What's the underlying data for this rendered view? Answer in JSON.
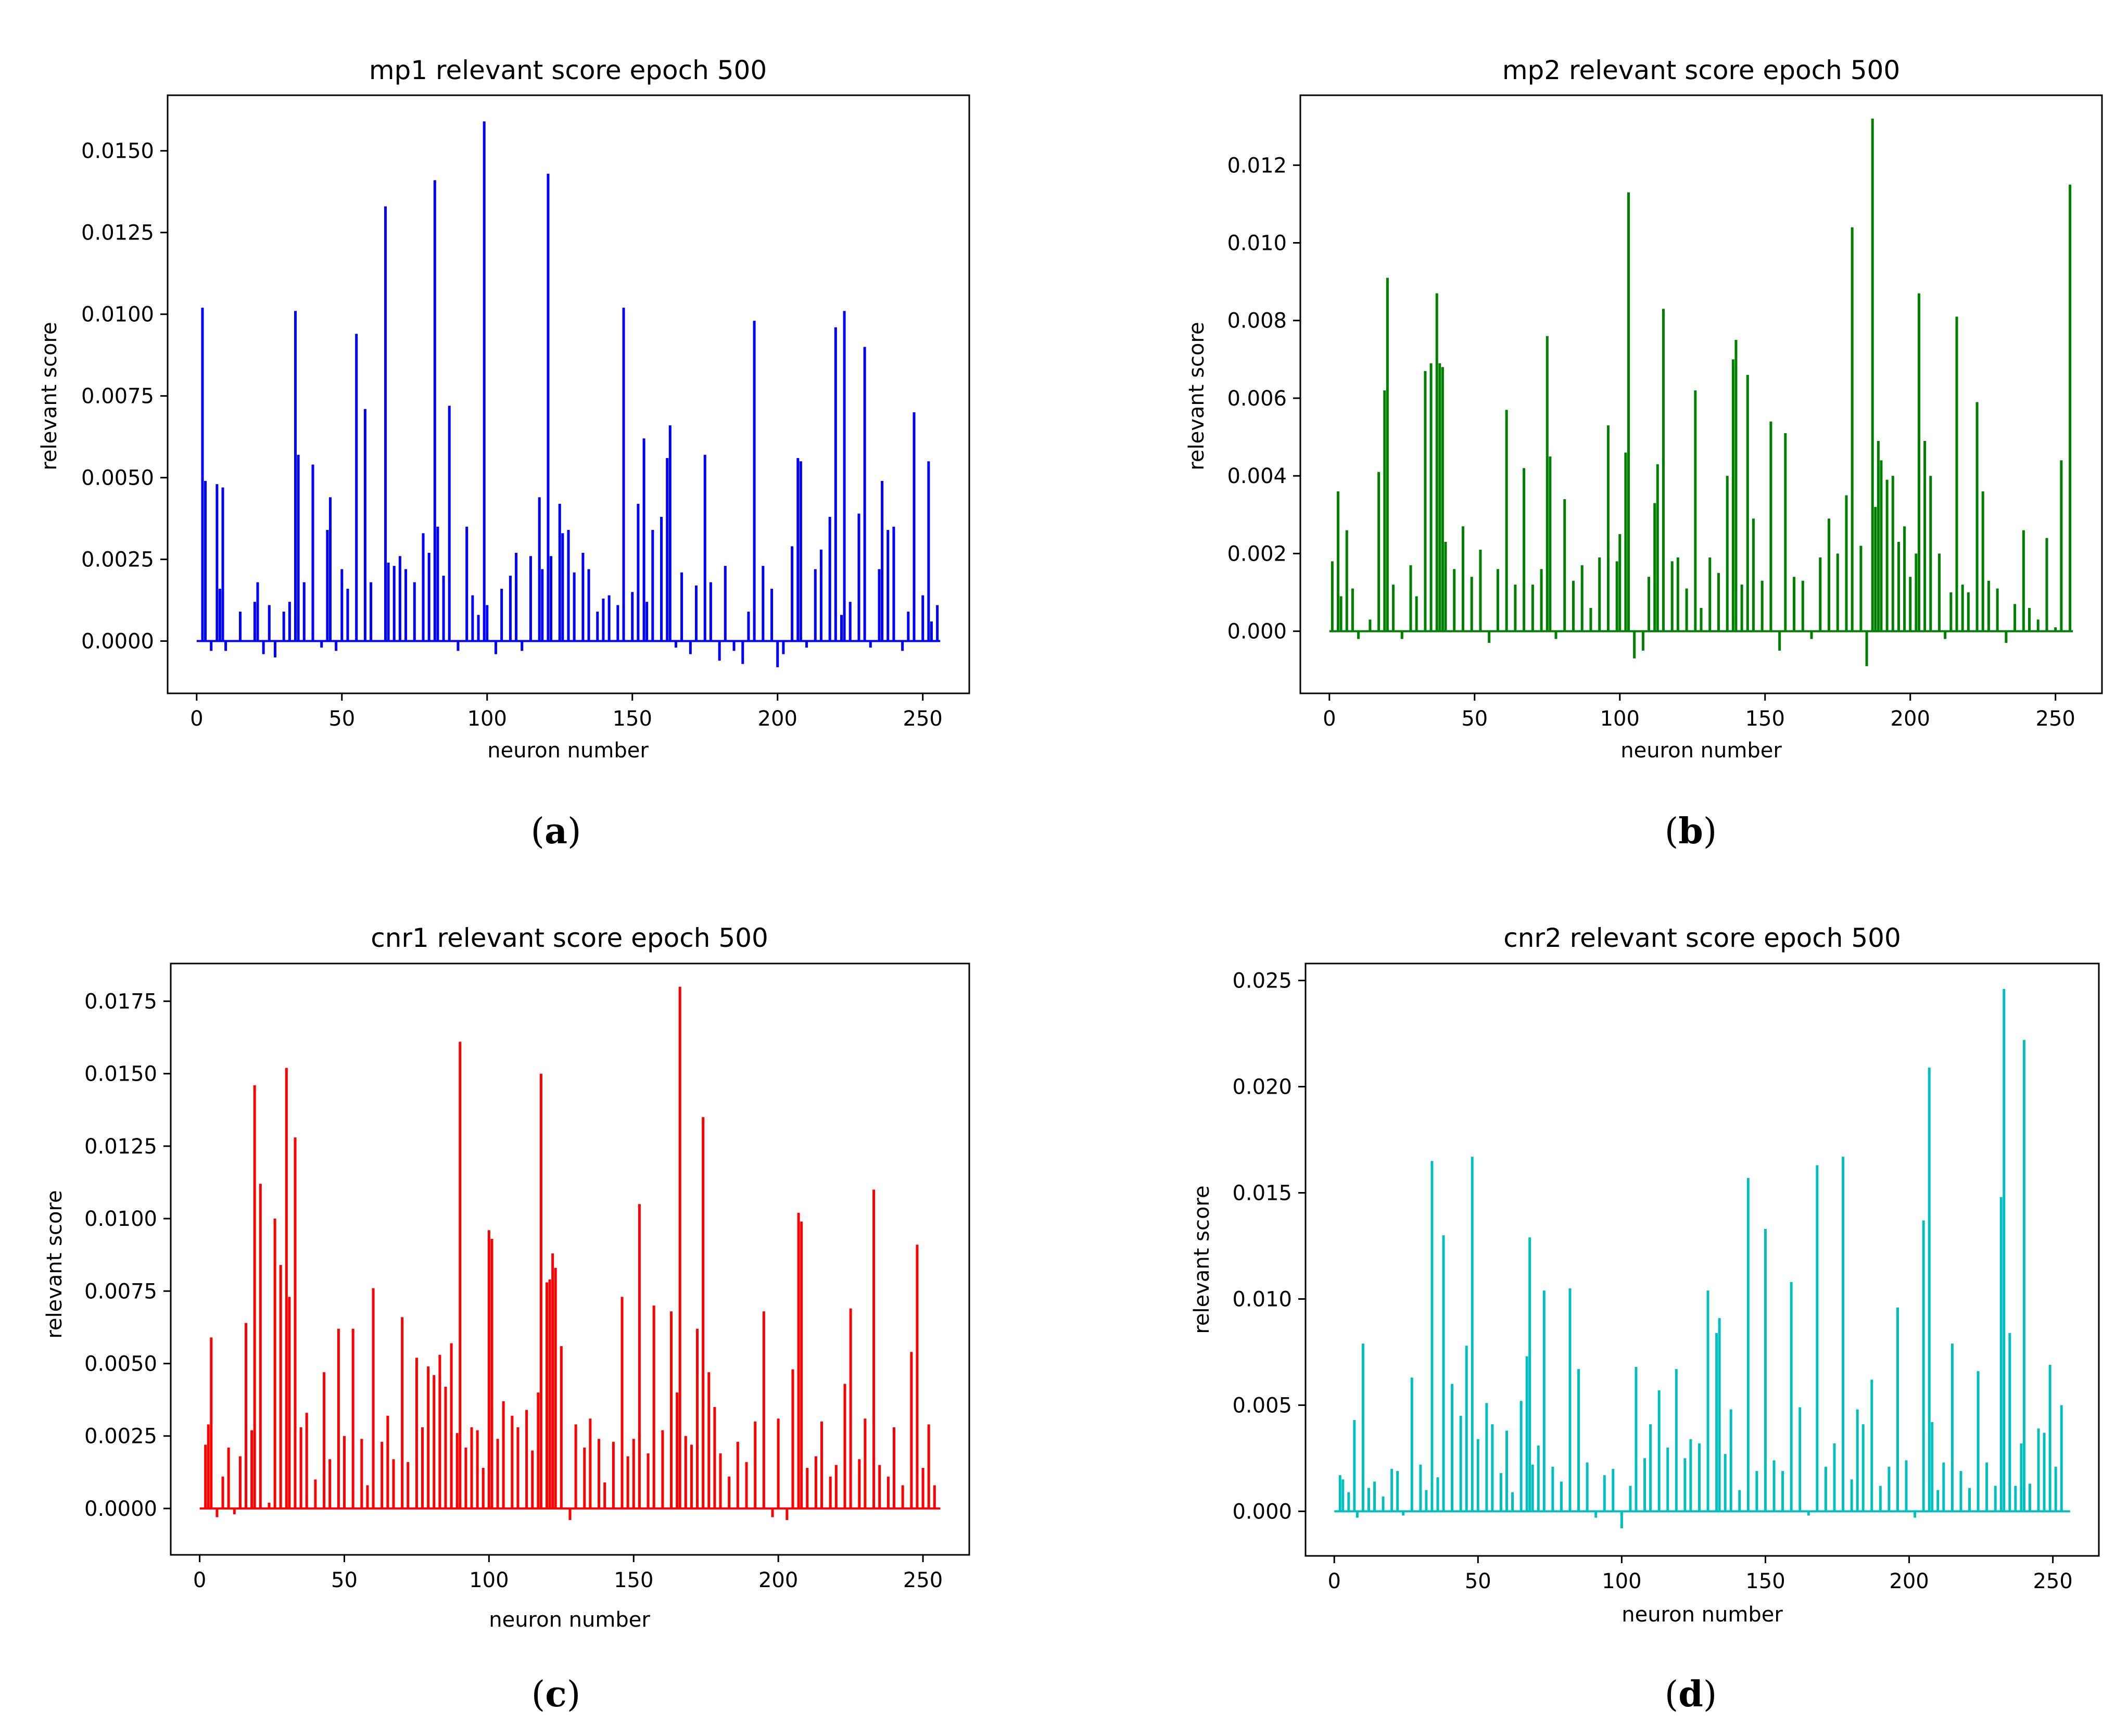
{
  "chart_data": [
    {
      "type": "bar",
      "title": "mp1 relevant score epoch 500",
      "xlabel": "neuron number",
      "ylabel": "relevant score",
      "caption": "a",
      "color": "#0000ff",
      "xlim": [
        -10,
        266
      ],
      "ylim": [
        -0.0016,
        0.0167
      ],
      "xticks": [
        0,
        50,
        100,
        150,
        200,
        250
      ],
      "yticks": [
        "0.0000",
        "0.0025",
        "0.0050",
        "0.0075",
        "0.0100",
        "0.0125",
        "0.0150"
      ],
      "x": [
        2,
        3,
        5,
        7,
        8,
        9,
        10,
        15,
        20,
        21,
        23,
        25,
        27,
        30,
        32,
        34,
        35,
        37,
        40,
        43,
        45,
        46,
        48,
        50,
        52,
        55,
        58,
        60,
        65,
        66,
        68,
        70,
        72,
        75,
        78,
        80,
        82,
        83,
        85,
        87,
        90,
        93,
        95,
        97,
        99,
        100,
        103,
        105,
        108,
        110,
        112,
        115,
        118,
        119,
        121,
        122,
        125,
        126,
        128,
        130,
        133,
        135,
        138,
        140,
        142,
        145,
        147,
        150,
        152,
        154,
        155,
        157,
        160,
        162,
        163,
        165,
        167,
        170,
        172,
        175,
        177,
        180,
        182,
        185,
        188,
        190,
        192,
        195,
        198,
        200,
        202,
        205,
        207,
        208,
        210,
        213,
        215,
        218,
        220,
        222,
        223,
        225,
        228,
        230,
        232,
        235,
        236,
        238,
        240,
        243,
        245,
        247,
        250,
        252,
        253,
        255
      ],
      "values": [
        0.0102,
        0.0049,
        -0.0003,
        0.0048,
        0.0016,
        0.0047,
        -0.0003,
        0.0009,
        0.0012,
        0.0018,
        -0.0004,
        0.0011,
        -0.0005,
        0.0009,
        0.0012,
        0.0101,
        0.0057,
        0.0018,
        0.0054,
        -0.0002,
        0.0034,
        0.0044,
        -0.0003,
        0.0022,
        0.0016,
        0.0094,
        0.0071,
        0.0018,
        0.0133,
        0.0024,
        0.0023,
        0.0026,
        0.0022,
        0.0018,
        0.0033,
        0.0027,
        0.0141,
        0.0035,
        0.002,
        0.0072,
        -0.0003,
        0.0035,
        0.0014,
        0.0008,
        0.0159,
        0.0011,
        -0.0004,
        0.0016,
        0.002,
        0.0027,
        -0.0003,
        0.0026,
        0.0044,
        0.0022,
        0.0143,
        0.0026,
        0.0042,
        0.0033,
        0.0034,
        0.0021,
        0.0027,
        0.0022,
        0.0009,
        0.0013,
        0.0014,
        0.0011,
        0.0102,
        0.0015,
        0.0042,
        0.0062,
        0.0012,
        0.0034,
        0.0038,
        0.0056,
        0.0066,
        -0.0002,
        0.0021,
        -0.0004,
        0.0017,
        0.0057,
        0.0018,
        -0.0006,
        0.0023,
        -0.0003,
        -0.0007,
        0.0009,
        0.0098,
        0.0023,
        0.0016,
        -0.0008,
        -0.0004,
        0.0029,
        0.0056,
        0.0055,
        -0.0002,
        0.0022,
        0.0028,
        0.0038,
        0.0096,
        0.0008,
        0.0101,
        0.0012,
        0.0039,
        0.009,
        -0.0002,
        0.0022,
        0.0049,
        0.0034,
        0.0035,
        -0.0003,
        0.0009,
        0.007,
        0.0014,
        0.0055,
        0.0006,
        0.0011
      ]
    },
    {
      "type": "bar",
      "title": "mp2 relevant score epoch 500",
      "xlabel": "neuron number",
      "ylabel": "relevant score",
      "caption": "b",
      "color": "#008000",
      "xlim": [
        -10,
        266
      ],
      "ylim": [
        -0.0016,
        0.0138
      ],
      "xticks": [
        0,
        50,
        100,
        150,
        200,
        250
      ],
      "yticks": [
        "0.000",
        "0.002",
        "0.004",
        "0.006",
        "0.008",
        "0.010",
        "0.012"
      ],
      "x": [
        1,
        3,
        4,
        6,
        8,
        10,
        14,
        17,
        19,
        20,
        22,
        25,
        28,
        30,
        33,
        35,
        37,
        38,
        39,
        40,
        43,
        46,
        49,
        52,
        55,
        58,
        61,
        64,
        67,
        70,
        73,
        75,
        76,
        78,
        81,
        84,
        87,
        90,
        93,
        96,
        99,
        100,
        102,
        103,
        105,
        108,
        110,
        112,
        113,
        115,
        118,
        120,
        123,
        126,
        128,
        131,
        134,
        137,
        139,
        140,
        142,
        144,
        146,
        149,
        152,
        155,
        157,
        160,
        163,
        166,
        169,
        172,
        175,
        178,
        180,
        183,
        185,
        187,
        188,
        189,
        190,
        192,
        194,
        196,
        198,
        200,
        202,
        203,
        205,
        207,
        210,
        212,
        214,
        216,
        218,
        220,
        223,
        225,
        227,
        230,
        233,
        236,
        239,
        241,
        244,
        247,
        250,
        252,
        255
      ],
      "values": [
        0.0018,
        0.0036,
        0.0009,
        0.0026,
        0.0011,
        -0.0002,
        0.0003,
        0.0041,
        0.0062,
        0.0091,
        0.0012,
        -0.0002,
        0.0017,
        0.0009,
        0.0067,
        0.0069,
        0.0087,
        0.0069,
        0.0068,
        0.0023,
        0.0016,
        0.0027,
        0.0014,
        0.0021,
        -0.0003,
        0.0016,
        0.0057,
        0.0012,
        0.0042,
        0.0012,
        0.0016,
        0.0076,
        0.0045,
        -0.0002,
        0.0034,
        0.0013,
        0.0017,
        0.0006,
        0.0019,
        0.0053,
        0.0018,
        0.0025,
        0.0046,
        0.0113,
        -0.0007,
        -0.0005,
        0.0014,
        0.0033,
        0.0043,
        0.0083,
        0.0018,
        0.0019,
        0.0011,
        0.0062,
        0.0006,
        0.0019,
        0.0015,
        0.004,
        0.007,
        0.0075,
        0.0012,
        0.0066,
        0.0029,
        0.0013,
        0.0054,
        -0.0005,
        0.0051,
        0.0014,
        0.0013,
        -0.0002,
        0.0019,
        0.0029,
        0.002,
        0.0035,
        0.0104,
        0.0022,
        -0.0009,
        0.0132,
        0.0032,
        0.0049,
        0.0044,
        0.0039,
        0.004,
        0.0023,
        0.0027,
        0.0014,
        0.002,
        0.0087,
        0.0049,
        0.004,
        0.002,
        -0.0002,
        0.001,
        0.0081,
        0.0012,
        0.001,
        0.0059,
        0.0036,
        0.0013,
        0.0011,
        -0.0003,
        0.0007,
        0.0026,
        0.0006,
        0.0003,
        0.0024,
        0.0001,
        0.0044,
        0.0115
      ]
    },
    {
      "type": "bar",
      "title": "cnr1 relevant score epoch 500",
      "xlabel": "neuron number",
      "ylabel": "relevant score",
      "caption": "c",
      "color": "#ff0000",
      "xlim": [
        -10,
        266
      ],
      "ylim": [
        -0.0016,
        0.0188
      ],
      "xticks": [
        0,
        50,
        100,
        150,
        200,
        250
      ],
      "yticks": [
        "0.0000",
        "0.0025",
        "0.0050",
        "0.0075",
        "0.0100",
        "0.0125",
        "0.0150",
        "0.0175"
      ],
      "x": [
        2,
        3,
        4,
        6,
        8,
        10,
        12,
        14,
        16,
        18,
        19,
        21,
        24,
        26,
        28,
        30,
        31,
        33,
        35,
        37,
        40,
        43,
        45,
        48,
        50,
        53,
        56,
        58,
        60,
        63,
        65,
        67,
        70,
        72,
        75,
        77,
        79,
        81,
        83,
        85,
        87,
        89,
        90,
        92,
        94,
        96,
        98,
        100,
        101,
        103,
        105,
        108,
        110,
        113,
        115,
        117,
        118,
        120,
        121,
        122,
        123,
        125,
        128,
        130,
        133,
        135,
        138,
        140,
        143,
        146,
        148,
        150,
        152,
        155,
        157,
        160,
        163,
        165,
        166,
        168,
        170,
        172,
        174,
        176,
        178,
        180,
        183,
        186,
        189,
        192,
        195,
        198,
        200,
        203,
        205,
        207,
        208,
        210,
        213,
        215,
        218,
        220,
        223,
        225,
        228,
        230,
        233,
        235,
        238,
        240,
        243,
        246,
        248,
        250,
        252,
        254
      ],
      "values": [
        0.0022,
        0.0029,
        0.0059,
        -0.0003,
        0.0011,
        0.0021,
        -0.0002,
        0.0018,
        0.0064,
        0.0027,
        0.0146,
        0.0112,
        0.0002,
        0.01,
        0.0084,
        0.0152,
        0.0073,
        0.0128,
        0.0028,
        0.0033,
        0.001,
        0.0047,
        0.0017,
        0.0062,
        0.0025,
        0.0062,
        0.0024,
        0.0008,
        0.0076,
        0.0023,
        0.0032,
        0.0017,
        0.0066,
        0.0016,
        0.0052,
        0.0028,
        0.0049,
        0.0046,
        0.0053,
        0.0042,
        0.0057,
        0.0026,
        0.0161,
        0.0021,
        0.0028,
        0.0027,
        0.0014,
        0.0096,
        0.0093,
        0.0024,
        0.0037,
        0.0032,
        0.0028,
        0.0034,
        0.002,
        0.004,
        0.015,
        0.0078,
        0.0079,
        0.0088,
        0.0083,
        0.0056,
        -0.0004,
        0.0029,
        0.0021,
        0.0031,
        0.0024,
        0.0009,
        0.0023,
        0.0073,
        0.0018,
        0.0024,
        0.0105,
        0.0019,
        0.007,
        0.0027,
        0.0068,
        0.004,
        0.018,
        0.0025,
        0.0022,
        0.0062,
        0.0135,
        0.0047,
        0.0035,
        0.0019,
        0.0011,
        0.0023,
        0.0016,
        0.003,
        0.0068,
        -0.0003,
        0.0031,
        -0.0004,
        0.0048,
        0.0102,
        0.0099,
        0.0014,
        0.0018,
        0.003,
        0.0011,
        0.0015,
        0.0043,
        0.0069,
        0.0017,
        0.0031,
        0.011,
        0.0015,
        0.0011,
        0.0028,
        0.0008,
        0.0054,
        0.0091,
        0.0014,
        0.0029,
        0.0008
      ]
    },
    {
      "type": "bar",
      "title": "cnr2 relevant score epoch 500",
      "xlabel": "neuron number",
      "ylabel": "relevant score",
      "caption": "d",
      "color": "#00bfbf",
      "xlim": [
        -10,
        266
      ],
      "ylim": [
        -0.0021,
        0.0258
      ],
      "xticks": [
        0,
        50,
        100,
        150,
        200,
        250
      ],
      "yticks": [
        "0.000",
        "0.005",
        "0.010",
        "0.015",
        "0.020",
        "0.025"
      ],
      "x": [
        2,
        3,
        5,
        7,
        8,
        10,
        12,
        14,
        17,
        20,
        22,
        24,
        27,
        30,
        32,
        34,
        36,
        38,
        41,
        44,
        46,
        48,
        50,
        53,
        55,
        58,
        60,
        62,
        65,
        67,
        68,
        69,
        71,
        73,
        76,
        79,
        82,
        85,
        88,
        91,
        94,
        97,
        100,
        103,
        105,
        108,
        110,
        113,
        116,
        119,
        122,
        124,
        127,
        130,
        133,
        134,
        136,
        138,
        141,
        144,
        147,
        150,
        153,
        156,
        159,
        162,
        165,
        168,
        171,
        174,
        177,
        180,
        182,
        184,
        187,
        190,
        193,
        196,
        199,
        202,
        205,
        207,
        208,
        210,
        212,
        215,
        218,
        221,
        224,
        227,
        230,
        232,
        233,
        235,
        237,
        239,
        240,
        242,
        245,
        247,
        249,
        251,
        253
      ],
      "values": [
        0.0017,
        0.0015,
        0.0009,
        0.0043,
        -0.0003,
        0.0079,
        0.0011,
        0.0014,
        0.0007,
        0.002,
        0.0019,
        -0.0002,
        0.0063,
        0.0022,
        0.001,
        0.0165,
        0.0016,
        0.013,
        0.006,
        0.0045,
        0.0078,
        0.0167,
        0.0034,
        0.0051,
        0.0041,
        0.0018,
        0.0038,
        0.0009,
        0.0052,
        0.0073,
        0.0129,
        0.0022,
        0.0031,
        0.0104,
        0.0021,
        0.0014,
        0.0105,
        0.0067,
        0.0023,
        -0.0003,
        0.0017,
        0.002,
        -0.0008,
        0.0012,
        0.0068,
        0.0025,
        0.0041,
        0.0057,
        0.003,
        0.0067,
        0.0025,
        0.0034,
        0.0032,
        0.0104,
        0.0084,
        0.0091,
        0.0027,
        0.0048,
        0.001,
        0.0157,
        0.0019,
        0.0133,
        0.0024,
        0.0019,
        0.0108,
        0.0049,
        -0.0002,
        0.0163,
        0.0021,
        0.0032,
        0.0167,
        0.0015,
        0.0048,
        0.0041,
        0.0062,
        0.0012,
        0.0021,
        0.0096,
        0.0024,
        -0.0003,
        0.0137,
        0.0209,
        0.0042,
        0.001,
        0.0023,
        0.0079,
        0.0019,
        0.0011,
        0.0066,
        0.0023,
        0.0012,
        0.0148,
        0.0246,
        0.0084,
        0.0012,
        0.0032,
        0.0222,
        0.0013,
        0.0039,
        0.0037,
        0.0069,
        0.0021,
        0.005
      ]
    }
  ]
}
